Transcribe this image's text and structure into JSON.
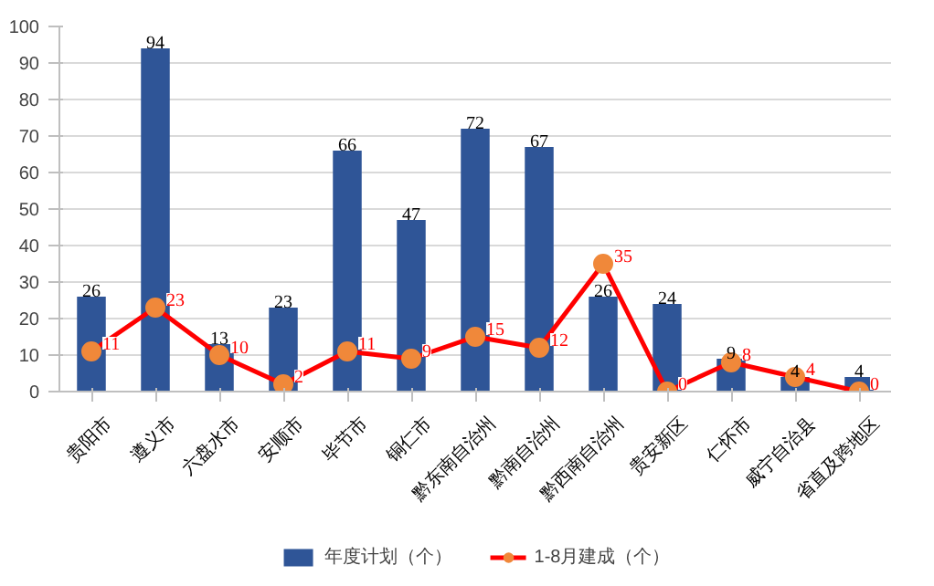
{
  "chart_data": {
    "type": "bar",
    "categories": [
      "贵阳市",
      "遵义市",
      "六盘水市",
      "安顺市",
      "毕节市",
      "铜仁市",
      "黔东南自治州",
      "黔南自治州",
      "黔西南自治州",
      "贵安新区",
      "仁怀市",
      "威宁自治县",
      "省直及跨地区"
    ],
    "series": [
      {
        "name": "年度计划（个）",
        "color": "#2f5597",
        "values": [
          26,
          94,
          13,
          23,
          66,
          47,
          72,
          67,
          26,
          24,
          9,
          4,
          4
        ]
      },
      {
        "name": "1-8月建成（个）",
        "type": "line",
        "color": "#ff0000",
        "colors": [
          "#f0883a",
          "#f0883a",
          "#f0883a",
          "#f0883a",
          "#f0883a",
          "#f0883a",
          "#f0883a",
          "#f0883a",
          "#f0883a",
          "#f0883a",
          "#f0883a",
          "#f0883a",
          "#f0883a"
        ],
        "marker": "circle",
        "values": [
          11,
          23,
          10,
          2,
          11,
          9,
          15,
          12,
          35,
          0,
          8,
          4,
          0
        ]
      }
    ],
    "ylim": [
      0,
      100
    ],
    "yticks": [
      0,
      10,
      20,
      30,
      40,
      50,
      60,
      70,
      80,
      90,
      100
    ],
    "grid": "y",
    "legend": "bottom",
    "data_labels": true
  }
}
